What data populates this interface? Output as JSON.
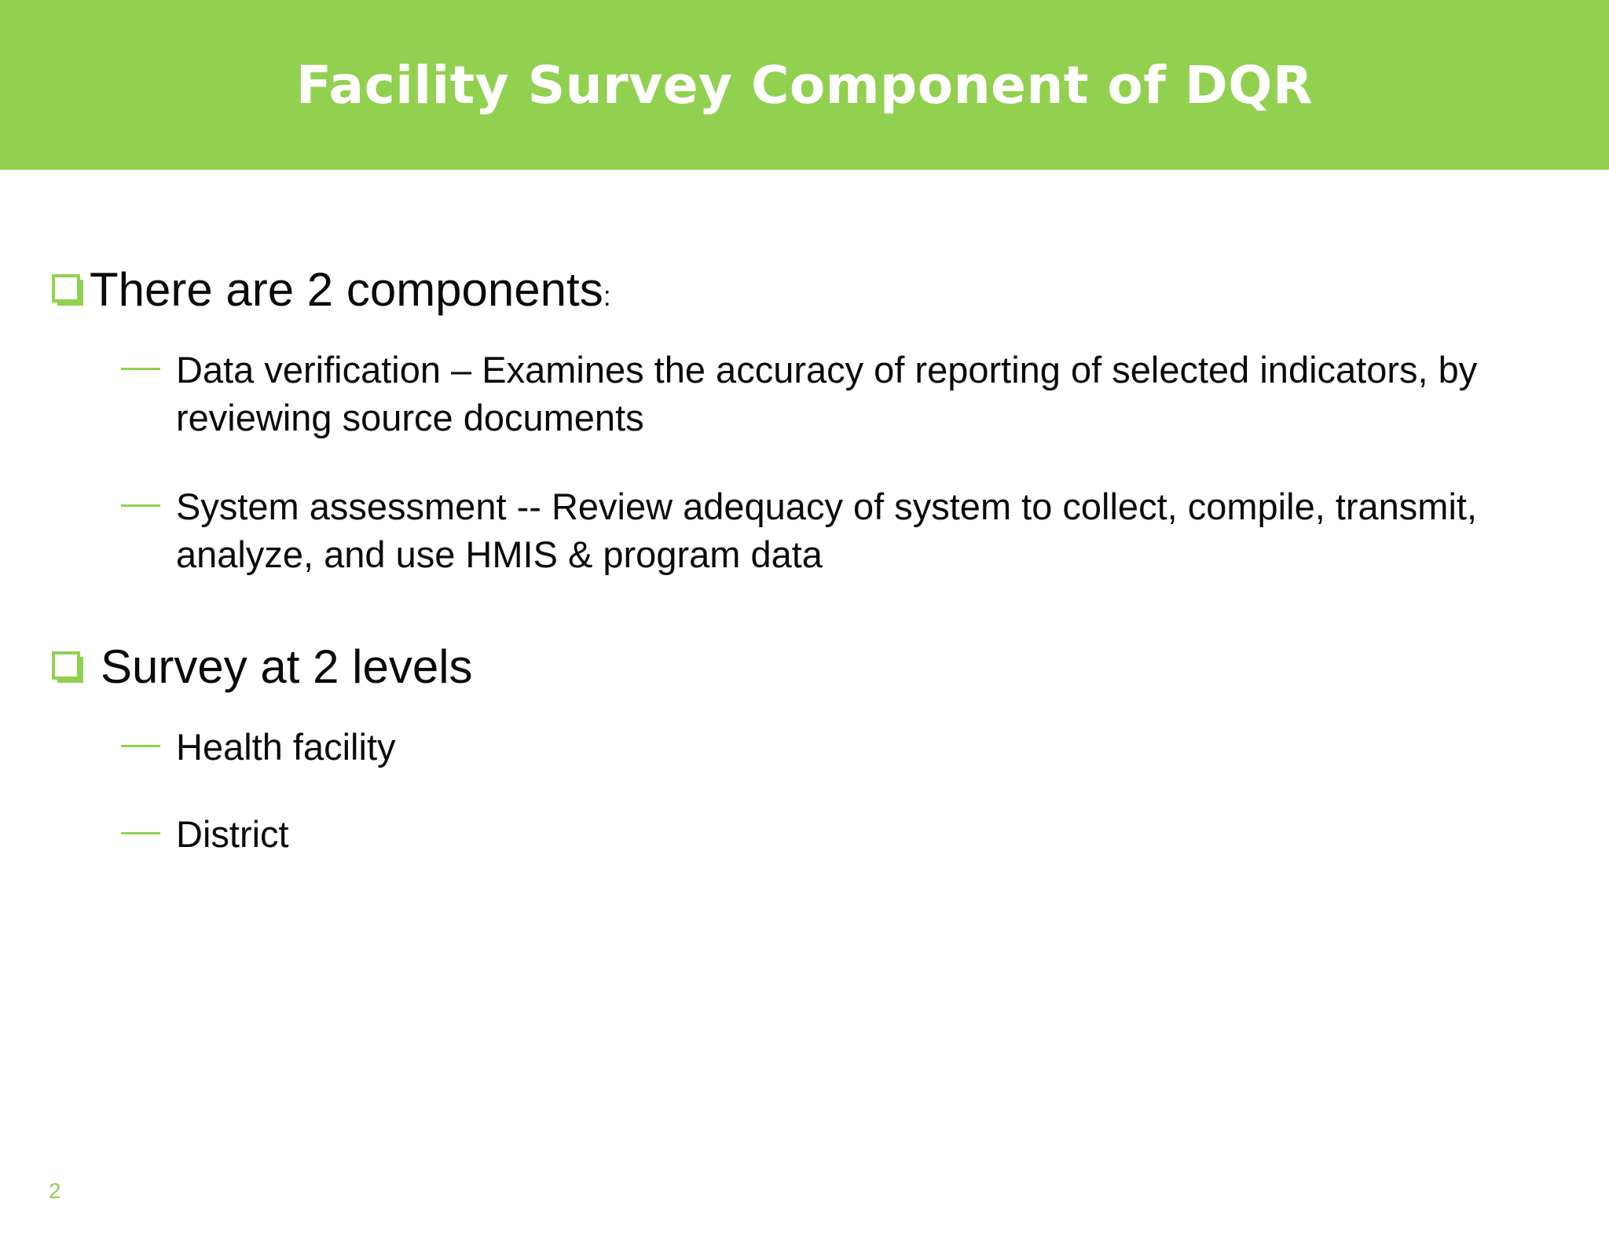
{
  "slide": {
    "title": "Facility Survey Component of DQR",
    "page_number": "2",
    "accent_color": "#92d050",
    "sections": [
      {
        "heading": "There are 2 components",
        "heading_suffix": ":",
        "icon": "checkbox-square-icon",
        "items": [
          "Data verification – Examines the accuracy of reporting of selected indicators, by reviewing source documents",
          "System assessment -- Review adequacy of system to collect, compile, transmit, analyze, and use HMIS & program data"
        ]
      },
      {
        "heading": "Survey at 2 levels",
        "icon": "checkbox-square-icon",
        "items": [
          "Health facility",
          "District"
        ]
      }
    ]
  }
}
